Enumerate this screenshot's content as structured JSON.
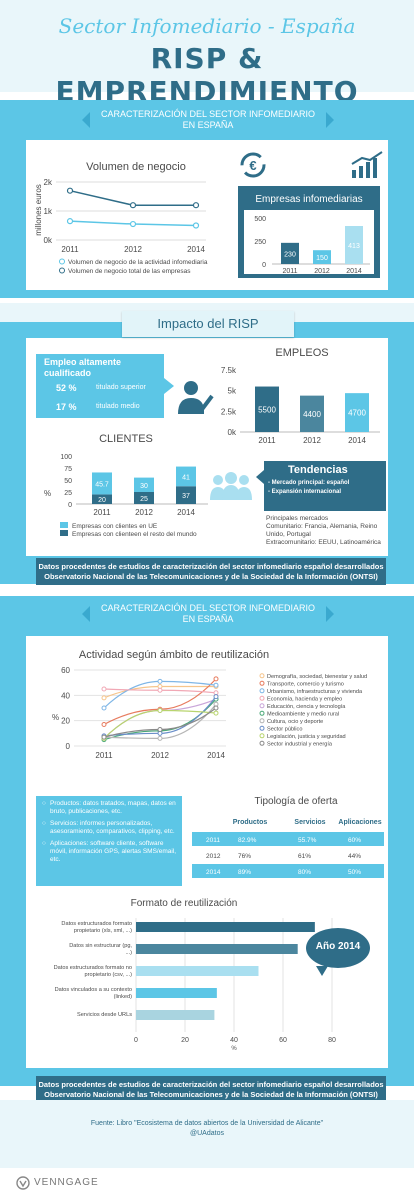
{
  "header": {
    "title": "Sector Infomediario - España",
    "subtitle": "RISP & EMPRENDIMIENTO"
  },
  "section1": {
    "ribbon": "CARACTERIZACIÓN DEL SECTOR INFOMEDIARIO EN ESPAÑA"
  },
  "impact": {
    "title": "Impacto del RISP"
  },
  "section2": {
    "ribbon": "CARACTERIZACIÓN DEL SECTOR INFOMEDIARIO EN ESPAÑA"
  },
  "employment_box": {
    "title": "Empleo altamente cualificado",
    "rows": [
      {
        "pct": "52 %",
        "label": "titulado superior"
      },
      {
        "pct": "17 %",
        "label": "titulado medio"
      }
    ]
  },
  "trends": {
    "title": "Tendencias",
    "items": [
      "- Mercado principal: español",
      "- Expansión internacional"
    ],
    "markets_title": "Principales mercados",
    "markets_1": "Comunitario: Francia, Alemania, Reino Unido, Portugal",
    "markets_2": "Extracomunitario: EEUU, Latinoamérica"
  },
  "offer_box": {
    "items": [
      "Productos: datos tratados, mapas, datos en bruto, publicaciones, etc.",
      "Servicios: informes personalizados, asesoramiento, comparativos, clipping, etc.",
      "Aplicaciones: software cliente, software móvil, información GPS, alertas SMS/email, etc."
    ]
  },
  "year_bubble": "Año 2014",
  "note1": "Datos procedentes de estudios de caracterización del sector infomediario español desarrollados Observatorio Nacional de las Telecomunicaciones y de la Sociedad de la Información (ONTSI)",
  "note2": "Datos procedentes de estudios de caracterización del sector infomediario español desarrollados Observatorio Nacional de las Telecomunicaciones y de la Sociedad de la Información (ONTSI)",
  "credit": {
    "line1": "Fuente: Libro \"Ecosistema de datos abiertos de la Universidad de Alicante\"",
    "line2": "@UAdatos"
  },
  "brand": "VENNGAGE",
  "colors": {
    "light": "#5cc6e6",
    "dark": "#2f6d88",
    "pale": "#a9dff0"
  },
  "chart_data": [
    {
      "type": "line",
      "title": "Volumen de negocio",
      "ylabel": "millones euros",
      "x": [
        "2011",
        "2012",
        "2014"
      ],
      "ylim": [
        0,
        2000
      ],
      "yticks": [
        "0k",
        "1k",
        "2k"
      ],
      "series": [
        {
          "name": "Volumen de negocio de la actividad infomediaria",
          "values": [
            650,
            550,
            500
          ],
          "color": "#5cc6e6"
        },
        {
          "name": "Volumen de negocio total de las empresas",
          "values": [
            1700,
            1200,
            1200
          ],
          "color": "#2f6d88"
        }
      ]
    },
    {
      "type": "bar",
      "title": "Empresas infomediarias",
      "categories": [
        "2011",
        "2012",
        "2014"
      ],
      "values": [
        230,
        150,
        413
      ],
      "ylim": [
        0,
        500
      ],
      "yticks": [
        "0",
        "250",
        "500"
      ],
      "colors": [
        "#2f6d88",
        "#5cc6e6",
        "#a9dff0"
      ]
    },
    {
      "type": "bar",
      "title": "EMPLEOS",
      "categories": [
        "2011",
        "2012",
        "2014"
      ],
      "values": [
        5500,
        4400,
        4700
      ],
      "ylim": [
        0,
        7500
      ],
      "yticks": [
        "0k",
        "2.5k",
        "5k",
        "7.5k"
      ],
      "colors": [
        "#2f6d88",
        "#4b869e",
        "#5cc6e6"
      ]
    },
    {
      "type": "bar",
      "title": "CLIENTES",
      "ylabel": "%",
      "categories": [
        "2011",
        "2012",
        "2014"
      ],
      "ylim": [
        0,
        100
      ],
      "yticks": [
        "0",
        "25",
        "50",
        "75",
        "100"
      ],
      "series": [
        {
          "name": "Empresas con clientes en UE",
          "values": [
            45.7,
            30,
            41
          ],
          "color": "#5cc6e6"
        },
        {
          "name": "Empresas con clienteen el resto del mundo",
          "values": [
            20,
            25,
            37
          ],
          "color": "#2f6d88"
        }
      ]
    },
    {
      "type": "line",
      "title": "Actividad según ámbito de reutilización",
      "ylabel": "%",
      "x": [
        "2011",
        "2012",
        "2014"
      ],
      "ylim": [
        0,
        60
      ],
      "yticks": [
        "0",
        "20",
        "40",
        "60"
      ],
      "series": [
        {
          "name": "Demografía, sociedad, bienestar y salud",
          "values": [
            38,
            47,
            47
          ],
          "color": "#f6c58c"
        },
        {
          "name": "Transporte, comercio y turismo",
          "values": [
            17,
            29,
            53
          ],
          "color": "#e77b5e"
        },
        {
          "name": "Urbanismo, infraestructuras y vivienda",
          "values": [
            30,
            51,
            48
          ],
          "color": "#7fb6e6"
        },
        {
          "name": "Economía, hacienda y empleo",
          "values": [
            45,
            44,
            42
          ],
          "color": "#f1a8b5"
        },
        {
          "name": "Educación, ciencia y tecnología",
          "values": [
            6,
            28,
            37
          ],
          "color": "#c9a6d9"
        },
        {
          "name": "Medioambiente y medio rural",
          "values": [
            5,
            12,
            37
          ],
          "color": "#4ba878"
        },
        {
          "name": "Cultura, ocio y deporte",
          "values": [
            7,
            6,
            33
          ],
          "color": "#b5b5b5"
        },
        {
          "name": "Sector público",
          "values": [
            8,
            10,
            39
          ],
          "color": "#6a8ec9"
        },
        {
          "name": "Legislación, justicia y seguridad",
          "values": [
            6,
            28,
            26
          ],
          "color": "#b8d46e"
        },
        {
          "name": "Sector industrial y energía",
          "values": [
            7,
            13,
            30
          ],
          "color": "#8a8a8a"
        }
      ]
    },
    {
      "type": "table",
      "title": "Tipología de oferta",
      "columns": [
        "",
        "Productos",
        "Servicios",
        "Aplicaciones"
      ],
      "rows": [
        [
          "2011",
          "82.9%",
          "55.7%",
          "60%"
        ],
        [
          "2012",
          "76%",
          "61%",
          "44%"
        ],
        [
          "2014",
          "89%",
          "80%",
          "50%"
        ]
      ]
    },
    {
      "type": "bar",
      "title": "Formato de reutilización",
      "xlabel": "%",
      "xlim": [
        0,
        80
      ],
      "xticks": [
        "0",
        "20",
        "40",
        "60",
        "80"
      ],
      "categories": [
        "Datos estructurados formato propietario (xls, xml, ...)",
        "Datos sin estructurar (pg, ...)",
        "Datos estructurados formato no propietario (csv, ...)",
        "Datos vinculados a su contexto (linked)",
        "Servicios desde URLs"
      ],
      "values": [
        73,
        66,
        50,
        33,
        32
      ],
      "colors": [
        "#2f6d88",
        "#4b869e",
        "#a9dff0",
        "#5cc6e6",
        "#a9d4e0"
      ]
    }
  ]
}
